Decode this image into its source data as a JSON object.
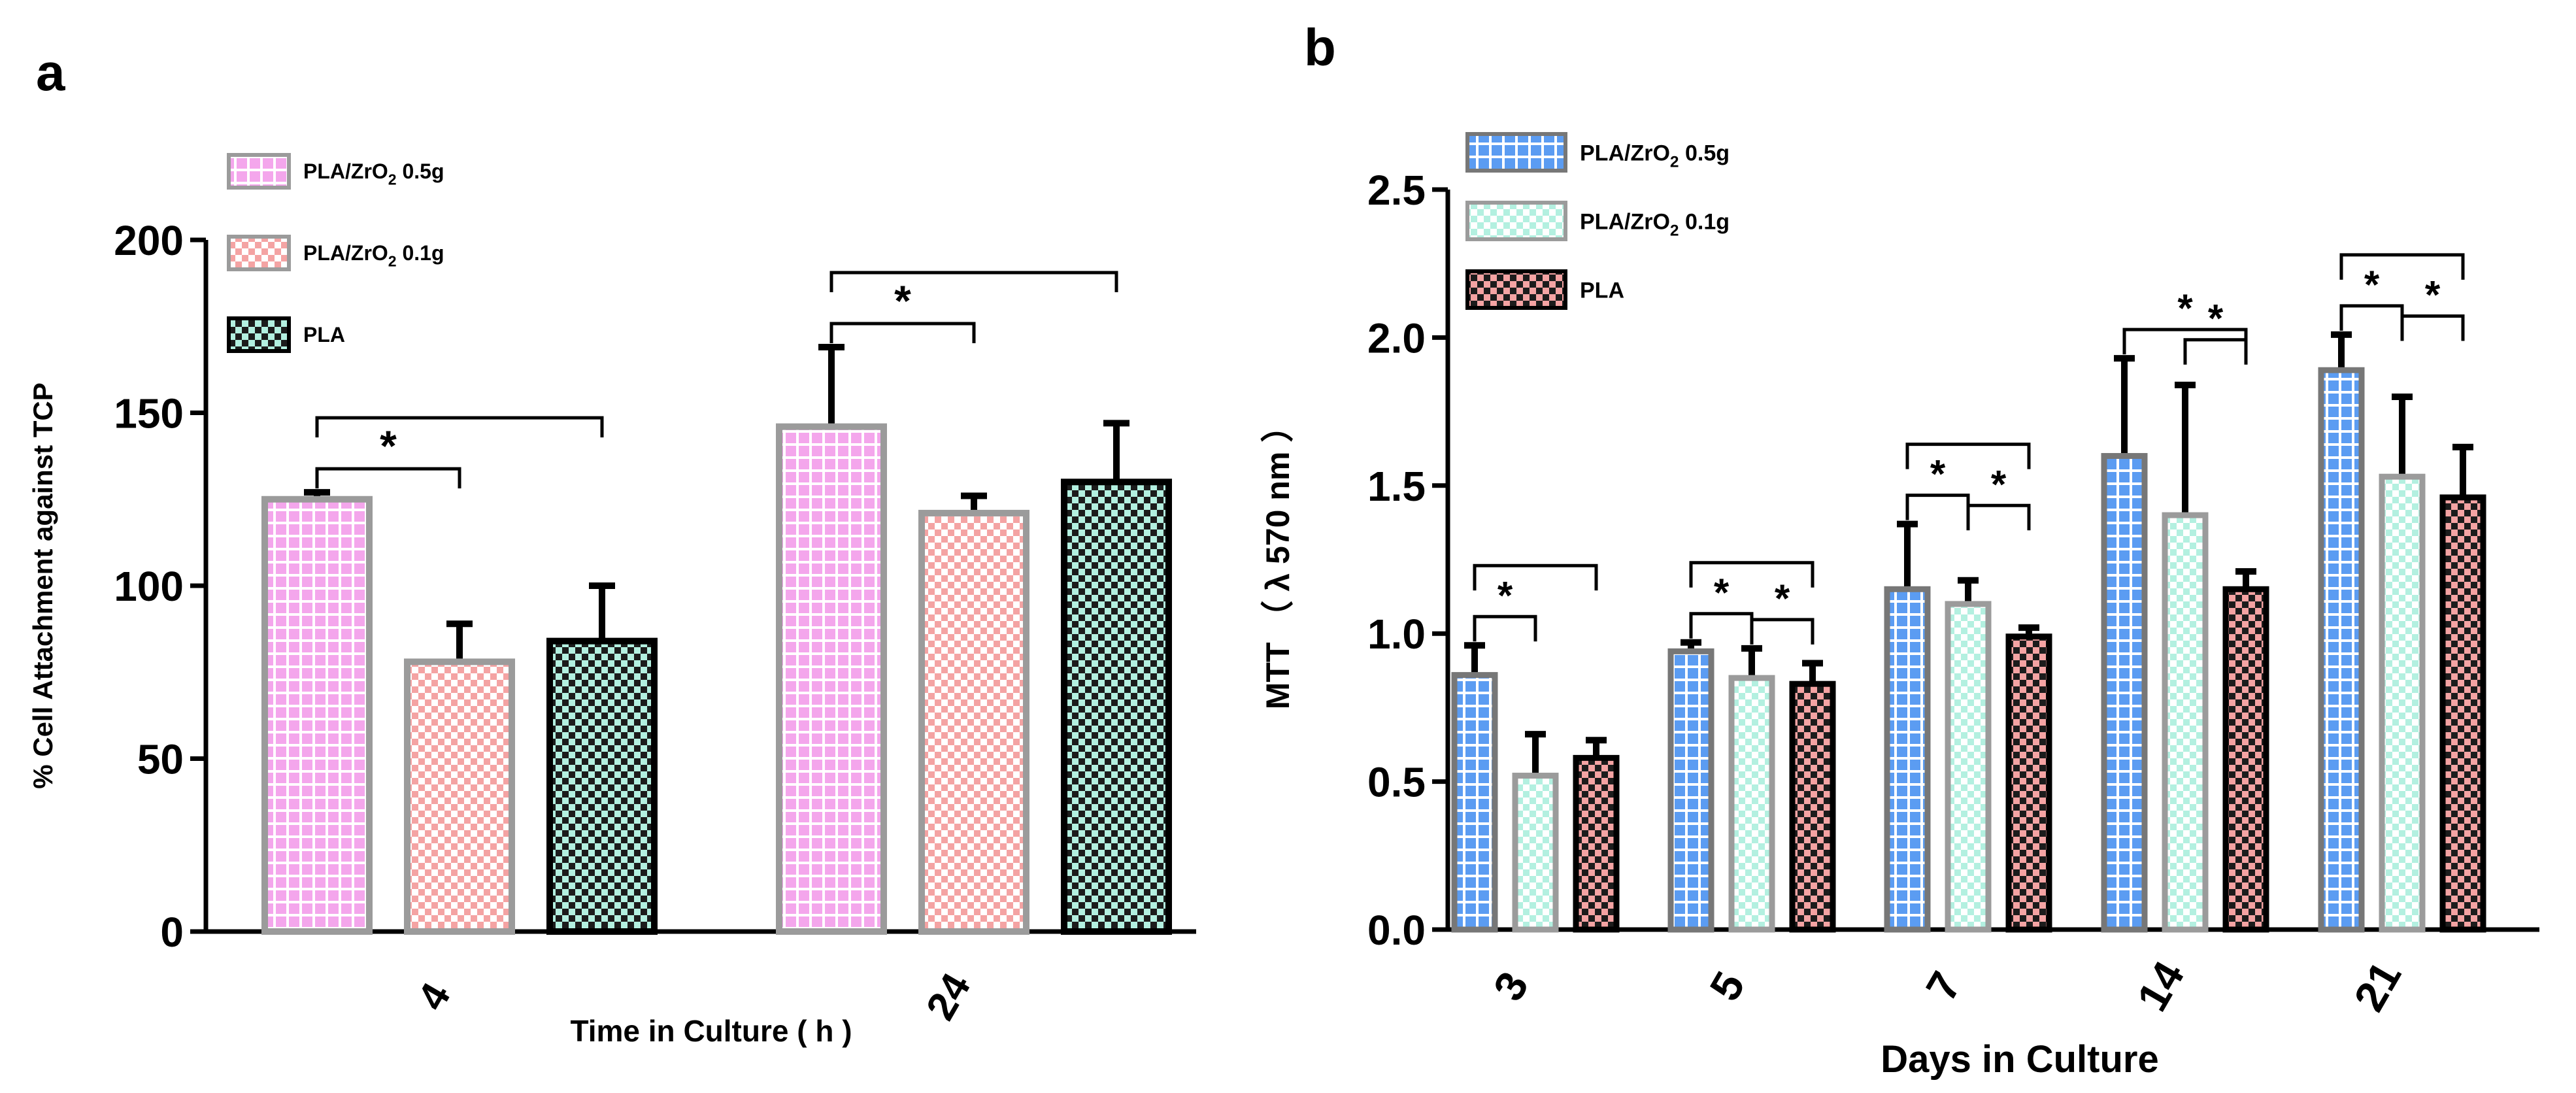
{
  "figure": {
    "panel_a_label": "a",
    "panel_b_label": "b"
  },
  "chart_data": [
    {
      "type": "bar",
      "panel": "a",
      "xlabel": "Time in Culture ( h )",
      "ylabel": "% Cell Attachment against TCP",
      "ylim": [
        0,
        200
      ],
      "yticks": [
        0,
        50,
        100,
        150,
        200
      ],
      "categories": [
        "4",
        "24"
      ],
      "legend_position": "top-left",
      "grid": false,
      "series": [
        {
          "name": "PLA/ZrO2 0.5g",
          "name_main": "PLA/ZrO",
          "name_sub": "2",
          "name_tail": " 0.5g",
          "values": [
            125,
            146
          ],
          "errors": [
            2,
            23
          ],
          "color": "#f4a6ec",
          "pattern": "grid",
          "border": "#9b9b9b"
        },
        {
          "name": "PLA/ZrO2 0.1g",
          "name_main": "PLA/ZrO",
          "name_sub": "2",
          "name_tail": " 0.1g",
          "values": [
            78,
            121
          ],
          "errors": [
            11,
            5
          ],
          "color": "#f4a3a3",
          "pattern": "checker",
          "border": "#9b9b9b"
        },
        {
          "name": "PLA",
          "name_main": "PLA",
          "name_sub": "",
          "name_tail": "",
          "values": [
            84,
            130
          ],
          "errors": [
            16,
            17
          ],
          "color": "#b3f0e0",
          "pattern": "checker-dark",
          "border": "#000000"
        }
      ],
      "significance": [
        {
          "category": 0,
          "marks": [
            {
              "from": 0,
              "to": 1,
              "label": "*"
            },
            {
              "from": 0,
              "to": 2,
              "label": ""
            }
          ]
        },
        {
          "category": 1,
          "marks": [
            {
              "from": 0,
              "to": 1,
              "label": "*"
            },
            {
              "from": 0,
              "to": 2,
              "label": ""
            }
          ]
        }
      ]
    },
    {
      "type": "bar",
      "panel": "b",
      "xlabel": "Days in Culture",
      "ylabel": "MTT （ λ 570 nm ）",
      "ylim": [
        0,
        2.5
      ],
      "yticks": [
        "0.0",
        "0.5",
        "1.0",
        "1.5",
        "2.0",
        "2.5"
      ],
      "categories": [
        "3",
        "5",
        "7",
        "14",
        "21"
      ],
      "legend_position": "top-left",
      "grid": false,
      "series": [
        {
          "name": "PLA/ZrO2 0.5g",
          "name_main": "PLA/ZrO",
          "name_sub": "2",
          "name_tail": " 0.5g",
          "values": [
            0.86,
            0.94,
            1.15,
            1.6,
            1.89
          ],
          "errors": [
            0.1,
            0.03,
            0.22,
            0.33,
            0.12
          ],
          "color": "#5b9cf2",
          "pattern": "grid",
          "border": "#777777"
        },
        {
          "name": "PLA/ZrO2 0.1g",
          "name_main": "PLA/ZrO",
          "name_sub": "2",
          "name_tail": " 0.1g",
          "values": [
            0.52,
            0.85,
            1.1,
            1.4,
            1.53
          ],
          "errors": [
            0.14,
            0.1,
            0.08,
            0.44,
            0.27
          ],
          "color": "#b3f0e0",
          "pattern": "checker",
          "border": "#9b9b9b"
        },
        {
          "name": "PLA",
          "name_main": "PLA",
          "name_sub": "",
          "name_tail": "",
          "values": [
            0.58,
            0.83,
            0.99,
            1.15,
            1.46
          ],
          "errors": [
            0.06,
            0.07,
            0.03,
            0.06,
            0.17
          ],
          "color": "#f4a3a3",
          "pattern": "checker-dark",
          "border": "#000000"
        }
      ],
      "significance": [
        {
          "category": 0,
          "marks": [
            {
              "from": 0,
              "to": 1,
              "label": "*"
            },
            {
              "from": 0,
              "to": 2,
              "label": ""
            }
          ]
        },
        {
          "category": 1,
          "marks": [
            {
              "from": 0,
              "to": 1,
              "label": "*"
            },
            {
              "from": 0,
              "to": 2,
              "label": ""
            },
            {
              "from": 1,
              "to": 2,
              "label": "*"
            }
          ]
        },
        {
          "category": 2,
          "marks": [
            {
              "from": 0,
              "to": 1,
              "label": "*"
            },
            {
              "from": 0,
              "to": 2,
              "label": ""
            },
            {
              "from": 1,
              "to": 2,
              "label": "*"
            }
          ]
        },
        {
          "category": 3,
          "marks": [
            {
              "from": 0,
              "to": 2,
              "label": "*"
            },
            {
              "from": 1,
              "to": 2,
              "label": "*"
            }
          ]
        },
        {
          "category": 4,
          "marks": [
            {
              "from": 0,
              "to": 1,
              "label": "*"
            },
            {
              "from": 0,
              "to": 2,
              "label": ""
            },
            {
              "from": 1,
              "to": 2,
              "label": "*"
            }
          ]
        }
      ]
    }
  ]
}
